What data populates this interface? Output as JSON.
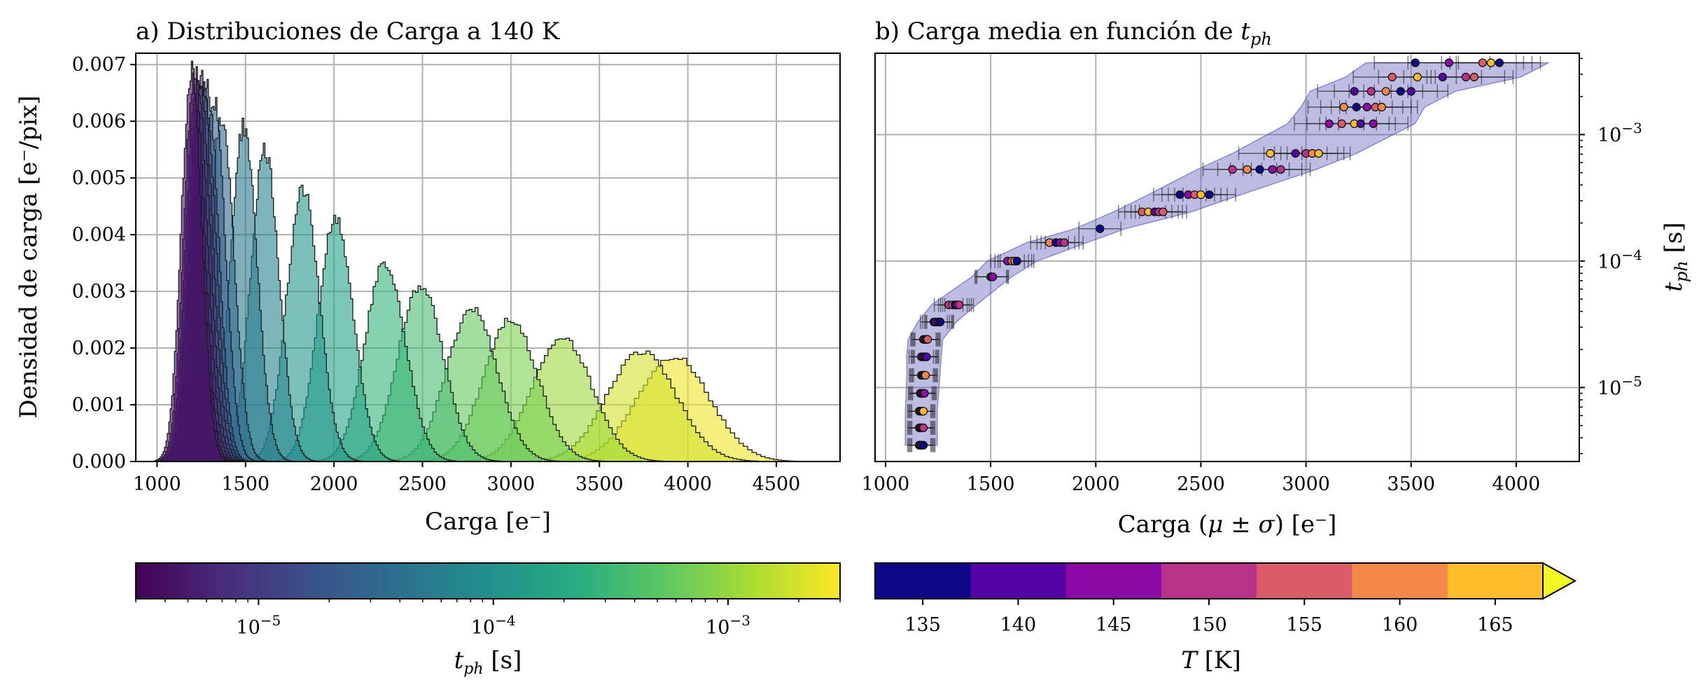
{
  "chart_data": [
    {
      "type": "area",
      "panel": "a",
      "title": "a) Distribuciones de Carga a 140 K",
      "xlabel": "Carga [e⁻]",
      "ylabel": "Densidad de carga [e⁻/pix]",
      "xlim": [
        880,
        4860
      ],
      "ylim": [
        0,
        0.0072
      ],
      "xticks": [
        "1000",
        "1500",
        "2000",
        "2500",
        "3000",
        "3500",
        "4000",
        "4500"
      ],
      "yticks": [
        "0.000",
        "0.001",
        "0.002",
        "0.003",
        "0.004",
        "0.005",
        "0.006",
        "0.007"
      ],
      "grid": true,
      "colorbar": {
        "label": "t_ph [s]",
        "label_main": "t",
        "label_sub": "ph",
        "label_unit": " [s]",
        "cmap": "viridis",
        "scale": "log",
        "range": [
          3e-06,
          0.003
        ],
        "ticks": [
          {
            "value": 1e-05,
            "label_base": "10",
            "label_exp": "−5"
          },
          {
            "value": 0.0001,
            "label_base": "10",
            "label_exp": "−4"
          },
          {
            "value": 0.001,
            "label_base": "10",
            "label_exp": "−3"
          }
        ]
      },
      "series": [
        {
          "mu": 1195,
          "sigma": 58,
          "peak": 0.0069,
          "t_ph": 4e-06
        },
        {
          "mu": 1210,
          "sigma": 58,
          "peak": 0.0068,
          "t_ph": 5e-06
        },
        {
          "mu": 1225,
          "sigma": 59,
          "peak": 0.0068,
          "t_ph": 7e-06
        },
        {
          "mu": 1240,
          "sigma": 60,
          "peak": 0.0067,
          "t_ph": 9e-06
        },
        {
          "mu": 1255,
          "sigma": 61,
          "peak": 0.0067,
          "t_ph": 1.2e-05
        },
        {
          "mu": 1270,
          "sigma": 62,
          "peak": 0.0066,
          "t_ph": 1.5e-05
        },
        {
          "mu": 1285,
          "sigma": 63,
          "peak": 0.0066,
          "t_ph": 2e-05
        },
        {
          "mu": 1320,
          "sigma": 66,
          "peak": 0.0064,
          "t_ph": 2.6e-05
        },
        {
          "mu": 1365,
          "sigma": 70,
          "peak": 0.0061,
          "t_ph": 3.4e-05
        },
        {
          "mu": 1490,
          "sigma": 75,
          "peak": 0.0059,
          "t_ph": 5e-05
        },
        {
          "mu": 1610,
          "sigma": 80,
          "peak": 0.0055,
          "t_ph": 7e-05
        },
        {
          "mu": 1825,
          "sigma": 92,
          "peak": 0.0048,
          "t_ph": 0.00012
        },
        {
          "mu": 2010,
          "sigma": 100,
          "peak": 0.0043,
          "t_ph": 0.00017
        },
        {
          "mu": 2290,
          "sigma": 115,
          "peak": 0.0035,
          "t_ph": 0.00028
        },
        {
          "mu": 2490,
          "sigma": 128,
          "peak": 0.0031,
          "t_ph": 0.00038
        },
        {
          "mu": 2780,
          "sigma": 142,
          "peak": 0.0027,
          "t_ph": 0.00058
        },
        {
          "mu": 3000,
          "sigma": 152,
          "peak": 0.0025,
          "t_ph": 0.00075
        },
        {
          "mu": 3290,
          "sigma": 168,
          "peak": 0.0022,
          "t_ph": 0.0011
        },
        {
          "mu": 3740,
          "sigma": 195,
          "peak": 0.00193,
          "t_ph": 0.0019
        },
        {
          "mu": 3920,
          "sigma": 205,
          "peak": 0.00185,
          "t_ph": 0.0026
        }
      ]
    },
    {
      "type": "scatter",
      "panel": "b",
      "title_main": "b) Carga media en función de ",
      "title_var": "t",
      "title_sub": "ph",
      "xlabel_pre": "Carga (",
      "xlabel_math": "μ ± σ",
      "xlabel_post": ") [e⁻]",
      "ylabel_main": "t",
      "ylabel_sub": "ph",
      "ylabel_unit": " [s]",
      "xlim": [
        950,
        4300
      ],
      "ylim": [
        2.6e-06,
        0.0044
      ],
      "yscale": "log",
      "xticks": [
        "1000",
        "1500",
        "2000",
        "2500",
        "3000",
        "3500",
        "4000"
      ],
      "yticks": [
        {
          "value": 1e-05,
          "label_base": "10",
          "label_exp": "−5"
        },
        {
          "value": 0.0001,
          "label_base": "10",
          "label_exp": "−4"
        },
        {
          "value": 0.001,
          "label_base": "10",
          "label_exp": "−3"
        }
      ],
      "grid": true,
      "band_color": "#5252b8",
      "colorbar": {
        "label_var": "T",
        "label_unit": " [K]",
        "cmap": "plasma",
        "bins": [
          {
            "T": 135,
            "color": "#0d0887"
          },
          {
            "T": 140,
            "color": "#5302a3"
          },
          {
            "T": 145,
            "color": "#8b0aa5"
          },
          {
            "T": 150,
            "color": "#b83289"
          },
          {
            "T": 155,
            "color": "#db5c68"
          },
          {
            "T": 160,
            "color": "#f48849"
          },
          {
            "T": 165,
            "color": "#febd2a"
          }
        ],
        "extend_color": "#f0f921",
        "ticks": [
          "135",
          "140",
          "145",
          "150",
          "155",
          "160",
          "165"
        ]
      },
      "rows": [
        {
          "t": 3.5e-06,
          "means": [
            1160,
            1165,
            1170,
            1175,
            1180
          ],
          "sigma": 55
        },
        {
          "t": 4.8e-06,
          "means": [
            1160,
            1165,
            1170,
            1175,
            1180
          ],
          "sigma": 55
        },
        {
          "t": 6.5e-06,
          "means": [
            1160,
            1165,
            1170,
            1175,
            1180
          ],
          "sigma": 55
        },
        {
          "t": 9e-06,
          "means": [
            1165,
            1170,
            1175,
            1180,
            1185
          ],
          "sigma": 56
        },
        {
          "t": 1.25e-05,
          "means": [
            1170,
            1175,
            1180,
            1185,
            1190
          ],
          "sigma": 57
        },
        {
          "t": 1.75e-05,
          "means": [
            1170,
            1180,
            1185,
            1190,
            1195
          ],
          "sigma": 58
        },
        {
          "t": 2.4e-05,
          "means": [
            1180,
            1185,
            1190,
            1195,
            1200
          ],
          "sigma": 60
        },
        {
          "t": 3.3e-05,
          "means": [
            1230,
            1240,
            1250,
            1255,
            1260
          ],
          "sigma": 64
        },
        {
          "t": 4.5e-05,
          "means": [
            1300,
            1320,
            1330,
            1340,
            1350
          ],
          "sigma": 68
        },
        {
          "t": 7.5e-05,
          "means": [
            1500,
            1505,
            1510
          ],
          "sigma": 75
        },
        {
          "t": 0.0001,
          "means": [
            1580,
            1600,
            1615,
            1625
          ],
          "sigma": 80
        },
        {
          "t": 0.00014,
          "means": [
            1780,
            1810,
            1830,
            1850
          ],
          "sigma": 90
        },
        {
          "t": 0.00018,
          "means": [
            2020
          ],
          "sigma": 100
        },
        {
          "t": 0.000245,
          "means": [
            2220,
            2250,
            2280,
            2300,
            2320
          ],
          "sigma": 112
        },
        {
          "t": 0.000335,
          "means": [
            2400,
            2440,
            2470,
            2500,
            2540
          ],
          "sigma": 125
        },
        {
          "t": 0.00053,
          "means": [
            2650,
            2720,
            2780,
            2840,
            2880
          ],
          "sigma": 140
        },
        {
          "t": 0.00071,
          "means": [
            2830,
            2950,
            3000,
            3030,
            3060
          ],
          "sigma": 150
        },
        {
          "t": 0.00122,
          "means": [
            3110,
            3170,
            3230,
            3260,
            3320
          ],
          "sigma": 165
        },
        {
          "t": 0.00165,
          "means": [
            3180,
            3240,
            3290,
            3330,
            3360
          ],
          "sigma": 170
        },
        {
          "t": 0.0022,
          "means": [
            3230,
            3310,
            3380,
            3450,
            3500
          ],
          "sigma": 175
        },
        {
          "t": 0.00285,
          "means": [
            3410,
            3530,
            3650,
            3760,
            3800
          ],
          "sigma": 185
        },
        {
          "t": 0.0037,
          "means": [
            3520,
            3680,
            3840,
            3880,
            3920
          ],
          "sigma": 195
        }
      ]
    }
  ]
}
